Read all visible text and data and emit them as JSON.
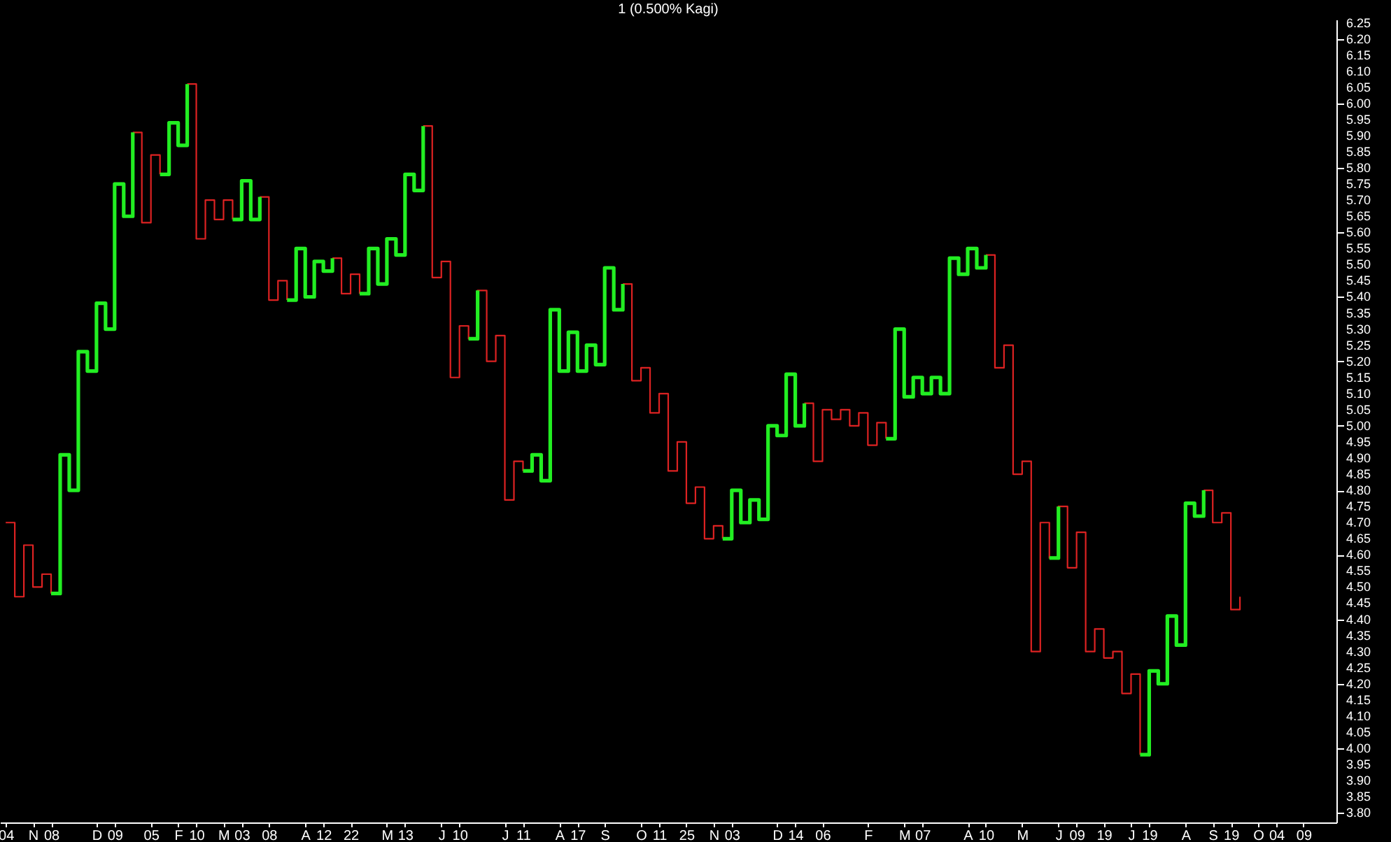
{
  "chart_data": {
    "type": "step",
    "title": "1 (0.500% Kagi)",
    "categories": [
      "04",
      null,
      null,
      "N",
      null,
      "08",
      null,
      null,
      null,
      null,
      "D",
      null,
      "09",
      null,
      null,
      null,
      "05",
      null,
      null,
      "F",
      null,
      "10",
      null,
      null,
      "M",
      null,
      "03",
      null,
      null,
      "08",
      null,
      null,
      null,
      "A",
      null,
      "12",
      null,
      null,
      "22",
      null,
      null,
      null,
      "M",
      null,
      "13",
      null,
      null,
      null,
      "J",
      null,
      "10",
      null,
      null,
      null,
      null,
      "J",
      null,
      "11",
      null,
      null,
      null,
      "A",
      null,
      "17",
      null,
      null,
      "S",
      null,
      null,
      null,
      "O",
      null,
      "11",
      null,
      null,
      "25",
      null,
      null,
      "N",
      null,
      "03",
      null,
      null,
      null,
      null,
      "D",
      null,
      "14",
      null,
      null,
      "06",
      null,
      null,
      null,
      null,
      "F",
      null,
      null,
      null,
      "M",
      null,
      "07",
      null,
      null,
      null,
      null,
      "A",
      null,
      "10",
      null,
      null,
      null,
      "M",
      null,
      null,
      null,
      "J",
      null,
      "09",
      null,
      null,
      "19",
      null,
      null,
      "J",
      null,
      "19",
      null,
      null,
      null,
      "A",
      null,
      null,
      "S",
      null,
      "19",
      null,
      null,
      "O",
      null,
      "04",
      null,
      null,
      "09",
      null,
      null,
      null
    ],
    "ylim": [
      3.77,
      6.26
    ],
    "yticks": [
      {
        "value": 3.8,
        "label": "3.80"
      },
      3.85,
      {
        "value": 3.9,
        "label": "3.90"
      },
      3.95,
      {
        "value": 4,
        "label": "4.00"
      },
      4.05,
      {
        "value": 4.1,
        "label": "4.10"
      },
      4.15,
      {
        "value": 4.2,
        "label": "4.20"
      },
      4.25,
      {
        "value": 4.3,
        "label": "4.30"
      },
      4.35,
      {
        "value": 4.4,
        "label": "4.40"
      },
      4.45,
      {
        "value": 4.5,
        "label": "4.50"
      },
      4.55,
      {
        "value": 4.6,
        "label": "4.60"
      },
      4.65,
      {
        "value": 4.7,
        "label": "4.70"
      },
      4.75,
      {
        "value": 4.8,
        "label": "4.80"
      },
      4.85,
      {
        "value": 4.9,
        "label": "4.90"
      },
      4.95,
      {
        "value": 5,
        "label": "5.00"
      },
      5.05,
      {
        "value": 5.1,
        "label": "5.10"
      },
      5.15,
      {
        "value": 5.2,
        "label": "5.20"
      },
      5.25,
      {
        "value": 5.3,
        "label": "5.30"
      },
      5.35,
      {
        "value": 5.4,
        "label": "5.40"
      },
      5.45,
      {
        "value": 5.5,
        "label": "5.50"
      },
      5.55,
      {
        "value": 5.6,
        "label": "5.60"
      },
      5.65,
      {
        "value": 5.7,
        "label": "5.70"
      },
      5.75,
      {
        "value": 5.8,
        "label": "5.80"
      },
      5.85,
      {
        "value": 5.9,
        "label": "5.90"
      },
      5.95,
      {
        "value": 6,
        "label": "6.00"
      },
      6.05,
      {
        "value": 6.1,
        "label": "6.10"
      },
      6.15,
      {
        "value": 6.2,
        "label": "6.20"
      },
      6.25
    ],
    "grid": false,
    "series": [
      {
        "color": "#dd2222",
        "values": [
          4.7,
          4.47,
          4.63,
          4.5,
          4.54,
          4.48,
          null,
          null,
          null,
          null,
          null,
          null,
          null,
          null,
          5.91,
          5.63,
          5.84,
          5.78,
          null,
          null,
          6.06,
          5.58,
          5.7,
          5.64,
          5.7,
          5.64,
          null,
          null,
          5.71,
          5.39,
          5.45,
          5.39,
          null,
          null,
          null,
          null,
          5.52,
          5.41,
          5.47,
          5.41,
          null,
          null,
          null,
          null,
          null,
          null,
          5.93,
          5.46,
          5.51,
          5.15,
          5.31,
          5.27,
          5.42,
          5.2,
          5.28,
          4.77,
          4.89,
          4.86,
          null,
          null,
          null,
          null,
          null,
          null,
          null,
          null,
          null,
          null,
          5.44,
          5.14,
          5.18,
          5.04,
          5.1,
          4.86,
          4.95,
          4.76,
          4.81,
          4.65,
          4.69,
          4.65,
          null,
          null,
          null,
          null,
          null,
          null,
          null,
          null,
          5.07,
          4.89,
          5.05,
          5.02,
          5.05,
          5.0,
          5.04,
          4.94,
          5.01,
          4.96,
          null,
          null,
          null,
          null,
          null,
          null,
          null,
          null,
          null,
          null,
          5.53,
          5.18,
          5.25,
          4.85,
          4.89,
          4.3,
          4.7,
          4.59,
          4.75,
          4.56,
          4.67,
          4.3,
          4.37,
          4.28,
          4.3,
          4.17,
          4.23,
          3.98,
          null,
          null,
          null,
          null,
          null,
          null,
          4.8,
          4.7,
          4.73,
          4.43,
          4.47,
          null,
          null,
          null,
          null,
          null,
          null,
          null,
          null,
          null,
          null
        ]
      },
      {
        "color": "#22ee22",
        "values": [
          null,
          null,
          null,
          null,
          null,
          4.48,
          4.91,
          4.8,
          5.23,
          5.17,
          5.38,
          5.3,
          5.75,
          5.65,
          5.91,
          null,
          null,
          5.78,
          5.94,
          5.87,
          6.06,
          null,
          null,
          null,
          null,
          5.64,
          5.76,
          5.64,
          5.71,
          null,
          null,
          5.39,
          5.55,
          5.4,
          5.51,
          5.48,
          5.52,
          null,
          null,
          5.41,
          5.55,
          5.44,
          5.58,
          5.53,
          5.78,
          5.73,
          5.93,
          null,
          null,
          null,
          null,
          5.27,
          5.42,
          null,
          null,
          null,
          null,
          4.86,
          4.91,
          4.83,
          5.36,
          5.17,
          5.29,
          5.17,
          5.25,
          5.19,
          5.49,
          5.36,
          5.44,
          null,
          null,
          null,
          null,
          null,
          null,
          null,
          null,
          null,
          null,
          4.65,
          4.8,
          4.7,
          4.77,
          4.71,
          5.0,
          4.97,
          5.16,
          5.0,
          5.07,
          null,
          null,
          null,
          null,
          null,
          null,
          null,
          null,
          4.96,
          5.3,
          5.09,
          5.15,
          5.1,
          5.15,
          5.1,
          5.52,
          5.47,
          5.55,
          5.49,
          5.53,
          null,
          null,
          null,
          null,
          null,
          null,
          4.59,
          4.75,
          null,
          null,
          null,
          null,
          null,
          null,
          null,
          null,
          3.98,
          4.24,
          4.2,
          4.41,
          4.32,
          4.76,
          4.72,
          4.8,
          null,
          null,
          null,
          null,
          null,
          null,
          null,
          null,
          null,
          null,
          null,
          null,
          null,
          null
        ]
      }
    ]
  }
}
